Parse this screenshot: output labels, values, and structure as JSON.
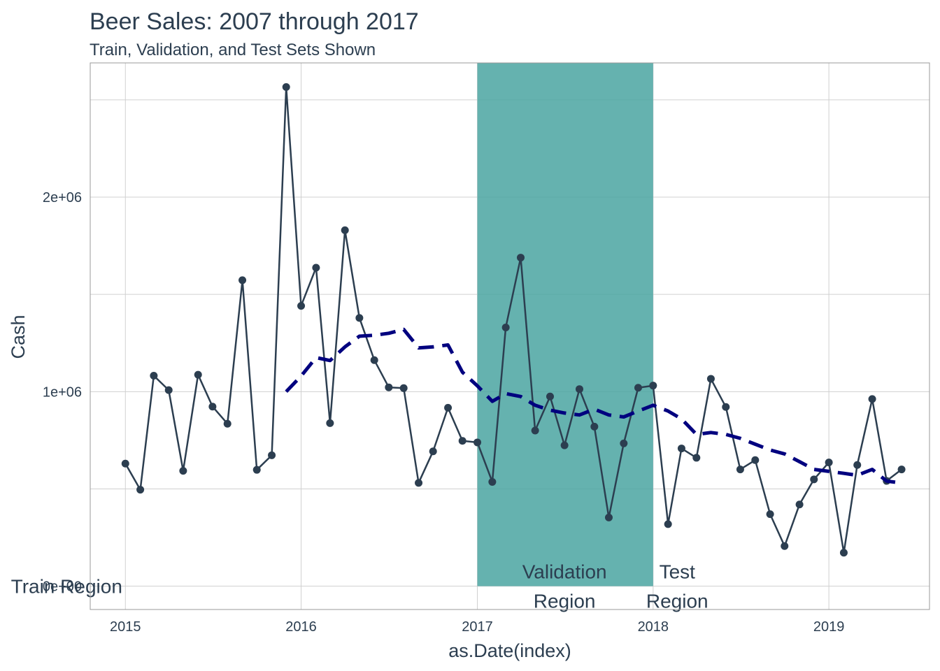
{
  "chart_data": {
    "type": "line",
    "title": "Beer Sales: 2007 through 2017",
    "subtitle": "Train, Validation, and Test Sets Shown",
    "xlabel": "as.Date(index)",
    "ylabel": "Cash",
    "xlim": [
      "2014-10-20",
      "2019-07-29"
    ],
    "ylim": [
      -120000,
      2690000
    ],
    "x_ticks": [
      {
        "date": "2015-01-01",
        "label": "2015"
      },
      {
        "date": "2016-01-01",
        "label": "2016"
      },
      {
        "date": "2017-01-01",
        "label": "2017"
      },
      {
        "date": "2018-01-01",
        "label": "2018"
      },
      {
        "date": "2019-01-01",
        "label": "2019"
      }
    ],
    "y_ticks": [
      {
        "value": 0,
        "label": "0e+00"
      },
      {
        "value": 1000000,
        "label": "1e+06"
      },
      {
        "value": 2000000,
        "label": "2e+06"
      }
    ],
    "y_minor_gridlines": [
      500000,
      1500000,
      2500000
    ],
    "grid": true,
    "legend": "none",
    "colors": {
      "line": "#2c3e50",
      "trend": "#00007f",
      "validation_band": "#4aa4a1",
      "grid": "#d0d0d0",
      "panel_border": "#999999"
    },
    "validation_band": {
      "start": "2017-01-01",
      "end": "2018-01-01"
    },
    "annotations": [
      {
        "text": "Train Region",
        "x": "2014-09-01",
        "y": 0,
        "anchor": "middle"
      },
      {
        "text": "Validation",
        "x": "2017-07-01",
        "y": 75000,
        "anchor": "middle"
      },
      {
        "text": "Region",
        "x": "2017-07-01",
        "y": -75000,
        "anchor": "middle"
      },
      {
        "text": "Test",
        "x": "2018-02-20",
        "y": 75000,
        "anchor": "middle"
      },
      {
        "text": "Region",
        "x": "2018-02-20",
        "y": -75000,
        "anchor": "middle"
      }
    ],
    "series": [
      {
        "type": "line",
        "x": [
          "2015-01-01",
          "2015-02-01",
          "2015-03-01",
          "2015-04-01",
          "2015-05-01",
          "2015-06-01",
          "2015-07-01",
          "2015-08-01",
          "2015-09-01",
          "2015-10-01",
          "2015-11-01",
          "2015-12-01",
          "2016-01-01",
          "2016-02-01",
          "2016-03-01",
          "2016-04-01",
          "2016-05-01",
          "2016-06-01",
          "2016-07-01",
          "2016-08-01",
          "2016-09-01",
          "2016-10-01",
          "2016-11-01",
          "2016-12-01",
          "2017-01-01",
          "2017-02-01",
          "2017-03-01",
          "2017-04-01",
          "2017-05-01",
          "2017-06-01",
          "2017-07-01",
          "2017-08-01",
          "2017-09-01",
          "2017-10-01",
          "2017-11-01",
          "2017-12-01",
          "2018-01-01",
          "2018-02-01",
          "2018-03-01",
          "2018-04-01",
          "2018-05-01",
          "2018-06-01",
          "2018-07-01",
          "2018-08-01",
          "2018-09-01",
          "2018-10-01",
          "2018-11-01",
          "2018-12-01",
          "2019-01-01",
          "2019-02-01",
          "2019-03-01",
          "2019-04-01",
          "2019-05-01",
          "2019-06-01"
        ],
        "values": [
          630000,
          496000,
          1082000,
          1008000,
          593000,
          1087000,
          923000,
          835000,
          1573000,
          598000,
          673000,
          2566000,
          1441000,
          1637000,
          838000,
          1830000,
          1379000,
          1162000,
          1022000,
          1018000,
          531000,
          693000,
          917000,
          747000,
          739000,
          536000,
          1330000,
          1689000,
          800000,
          975000,
          724000,
          1013000,
          820000,
          353000,
          734000,
          1020000,
          1031000,
          319000,
          708000,
          660000,
          1066000,
          921000,
          600000,
          648000,
          370000,
          206000,
          420000,
          549000,
          636000,
          172000,
          623000,
          962000,
          541000,
          600000
        ]
      },
      {
        "type": "trend",
        "x": [
          "2015-12-01",
          "2016-01-01",
          "2016-02-01",
          "2016-03-01",
          "2016-04-01",
          "2016-05-01",
          "2016-06-01",
          "2016-07-01",
          "2016-08-01",
          "2016-09-01",
          "2016-10-01",
          "2016-11-01",
          "2016-12-01",
          "2017-01-01",
          "2017-02-01",
          "2017-03-01",
          "2017-04-01",
          "2017-05-01",
          "2017-06-01",
          "2017-07-01",
          "2017-08-01",
          "2017-09-01",
          "2017-10-01",
          "2017-11-01",
          "2017-12-01",
          "2018-01-01",
          "2018-02-01",
          "2018-03-01",
          "2018-04-01",
          "2018-05-01",
          "2018-06-01",
          "2018-07-01",
          "2018-08-01",
          "2018-09-01",
          "2018-10-01",
          "2018-11-01",
          "2018-12-01",
          "2019-01-01",
          "2019-02-01",
          "2019-03-01",
          "2019-04-01",
          "2019-05-01",
          "2019-06-01"
        ],
        "values": [
          1000000,
          1080000,
          1175000,
          1160000,
          1230000,
          1285000,
          1290000,
          1300000,
          1320000,
          1225000,
          1230000,
          1240000,
          1100000,
          1030000,
          950000,
          990000,
          975000,
          930000,
          905000,
          890000,
          880000,
          910000,
          880000,
          870000,
          900000,
          930000,
          900000,
          860000,
          780000,
          790000,
          780000,
          760000,
          730000,
          700000,
          680000,
          640000,
          600000,
          590000,
          580000,
          570000,
          600000,
          540000,
          530000
        ]
      }
    ]
  }
}
